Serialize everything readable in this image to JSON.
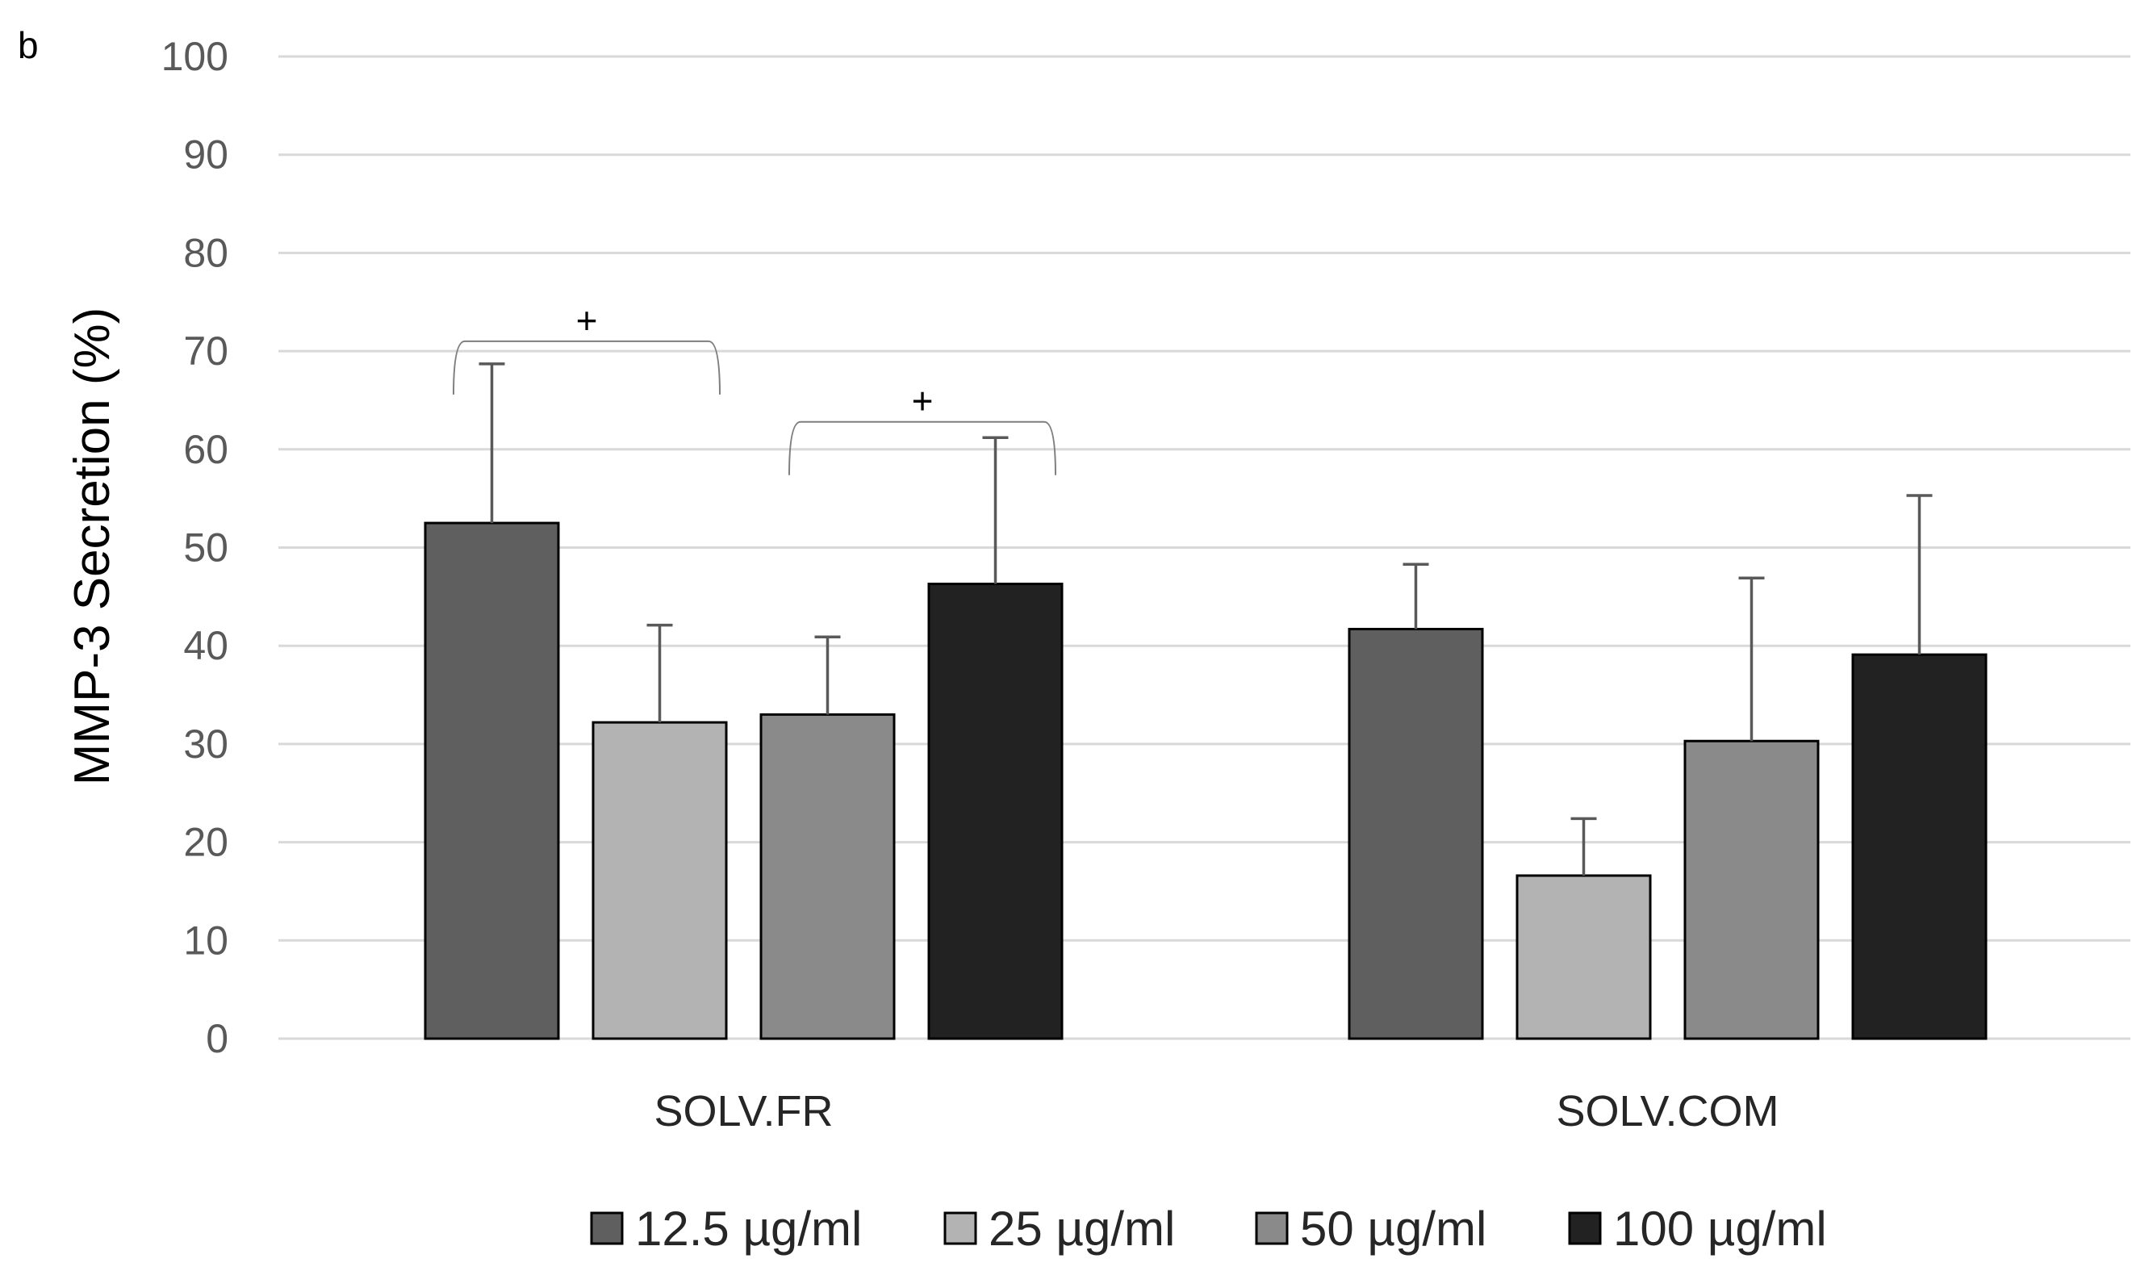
{
  "panel_label": "b",
  "chart_data": {
    "type": "bar",
    "title": "",
    "xlabel": "",
    "ylabel": "MMP-3 Secretion (%)",
    "ylim": [
      0,
      100
    ],
    "yticks": [
      0,
      10,
      20,
      30,
      40,
      50,
      60,
      70,
      80,
      90,
      100
    ],
    "grid": true,
    "legend_position": "bottom",
    "categories": [
      "SOLV.FR",
      "SOLV.COM"
    ],
    "series": [
      {
        "name": "12.5 µg/ml",
        "color": "#5f5f5f",
        "values": [
          52.5,
          41.7
        ],
        "errors": [
          16.2,
          6.6
        ]
      },
      {
        "name": "25 µg/ml",
        "color": "#b3b3b3",
        "values": [
          32.2,
          16.6
        ],
        "errors": [
          9.9,
          5.8
        ]
      },
      {
        "name": "50 µg/ml",
        "color": "#8a8a8a",
        "values": [
          33.0,
          30.3
        ],
        "errors": [
          7.9,
          16.6
        ]
      },
      {
        "name": "100  µg/ml",
        "color": "#222222",
        "values": [
          46.3,
          39.1
        ],
        "errors": [
          14.9,
          16.2
        ]
      }
    ],
    "annotations": [
      {
        "text": "+",
        "category": 0,
        "from_series": 0,
        "to_series": 1,
        "y": 71
      },
      {
        "text": "+",
        "category": 0,
        "from_series": 2,
        "to_series": 3,
        "y": 62.8
      }
    ]
  }
}
